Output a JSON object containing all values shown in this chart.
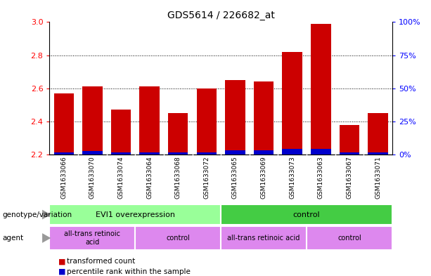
{
  "title": "GDS5614 / 226682_at",
  "samples": [
    "GSM1633066",
    "GSM1633070",
    "GSM1633074",
    "GSM1633064",
    "GSM1633068",
    "GSM1633072",
    "GSM1633065",
    "GSM1633069",
    "GSM1633073",
    "GSM1633063",
    "GSM1633067",
    "GSM1633071"
  ],
  "red_values": [
    2.57,
    2.61,
    2.47,
    2.61,
    2.45,
    2.6,
    2.65,
    2.64,
    2.82,
    2.99,
    2.38,
    2.45
  ],
  "blue_values": [
    2.215,
    2.22,
    2.215,
    2.215,
    2.215,
    2.215,
    2.225,
    2.225,
    2.235,
    2.235,
    2.215,
    2.215
  ],
  "ymin": 2.2,
  "ymax": 3.0,
  "yticks_left": [
    2.2,
    2.4,
    2.6,
    2.8,
    3.0
  ],
  "yticks_right_vals": [
    0,
    25,
    50,
    75,
    100
  ],
  "yticks_right_labels": [
    "0%",
    "25%",
    "50%",
    "75%",
    "100%"
  ],
  "bar_color_red": "#cc0000",
  "bar_color_blue": "#0000cc",
  "plot_bg_color": "#ffffff",
  "xtick_bg_color": "#d0d0d0",
  "geno_evi1_color": "#99ff99",
  "geno_ctrl_color": "#44cc44",
  "agent_color": "#dd88ee",
  "legend_red": "transformed count",
  "legend_blue": "percentile rank within the sample",
  "genotype_label": "genotype/variation",
  "agent_label": "agent",
  "genotype_groups": [
    {
      "label": "EVI1 overexpression",
      "start": 0,
      "end": 6
    },
    {
      "label": "control",
      "start": 6,
      "end": 12
    }
  ],
  "agent_groups": [
    {
      "label": "all-trans retinoic\nacid",
      "start": 0,
      "end": 3
    },
    {
      "label": "control",
      "start": 3,
      "end": 6
    },
    {
      "label": "all-trans retinoic acid",
      "start": 6,
      "end": 9
    },
    {
      "label": "control",
      "start": 9,
      "end": 12
    }
  ]
}
